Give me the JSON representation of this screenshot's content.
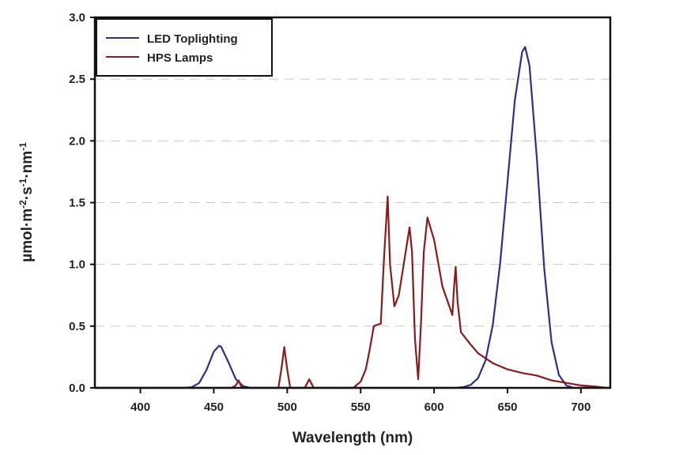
{
  "chart_data": {
    "type": "line",
    "title": "",
    "xlabel": "Wavelength (nm)",
    "ylabel": {
      "base": "µmol·m",
      "sup1": "-2",
      "mid1": "·s",
      "sup2": "-1",
      "mid2": "·nm",
      "sup3": "-1"
    },
    "xlim": [
      369,
      720
    ],
    "ylim": [
      0,
      3.0
    ],
    "xticks": [
      400,
      450,
      500,
      550,
      600,
      650,
      700
    ],
    "yticks": [
      "0.0",
      "0.5",
      "1.0",
      "1.5",
      "2.0",
      "2.5",
      "3.0"
    ],
    "grid": "horizontal dashed",
    "legend_position": "top-left",
    "series": [
      {
        "name": "LED Toplighting",
        "color": "#2e2f8a",
        "points": [
          [
            369,
            0
          ],
          [
            430,
            0
          ],
          [
            435,
            0.006
          ],
          [
            440,
            0.039
          ],
          [
            445,
            0.145
          ],
          [
            450,
            0.294
          ],
          [
            453.5,
            0.34
          ],
          [
            455,
            0.333
          ],
          [
            460,
            0.207
          ],
          [
            465,
            0.071
          ],
          [
            470,
            0.014
          ],
          [
            475,
            0
          ],
          [
            612,
            0
          ],
          [
            615,
            0.001
          ],
          [
            620,
            0.006
          ],
          [
            625,
            0.024
          ],
          [
            630,
            0.079
          ],
          [
            635,
            0.22
          ],
          [
            640,
            0.51
          ],
          [
            645,
            1.01
          ],
          [
            650,
            1.67
          ],
          [
            655,
            2.33
          ],
          [
            660,
            2.72
          ],
          [
            662,
            2.76
          ],
          [
            665,
            2.61
          ],
          [
            670,
            1.86
          ],
          [
            675,
            0.97
          ],
          [
            680,
            0.37
          ],
          [
            685,
            0.105
          ],
          [
            690,
            0.02
          ],
          [
            695,
            0
          ],
          [
            720,
            0
          ]
        ]
      },
      {
        "name": "HPS Lamps",
        "color": "#8b1a1a",
        "points": [
          [
            369,
            0
          ],
          [
            462,
            0
          ],
          [
            465,
            0.02
          ],
          [
            467,
            0.06
          ],
          [
            469,
            0
          ],
          [
            494,
            0
          ],
          [
            496,
            0.15
          ],
          [
            498,
            0.33
          ],
          [
            500,
            0.15
          ],
          [
            502,
            0
          ],
          [
            512,
            0
          ],
          [
            515,
            0.07
          ],
          [
            518,
            0
          ],
          [
            545,
            0
          ],
          [
            550,
            0.05
          ],
          [
            553.5,
            0.15
          ],
          [
            556,
            0.3
          ],
          [
            559,
            0.5
          ],
          [
            563.7,
            0.52
          ],
          [
            565.8,
            1.03
          ],
          [
            568.4,
            1.55
          ],
          [
            570,
            1.0
          ],
          [
            573,
            0.66
          ],
          [
            576,
            0.75
          ],
          [
            580,
            1.05
          ],
          [
            583.3,
            1.3
          ],
          [
            585,
            1.1
          ],
          [
            587,
            0.4
          ],
          [
            589.2,
            0.07
          ],
          [
            591,
            0.5
          ],
          [
            593,
            1.1
          ],
          [
            595.5,
            1.38
          ],
          [
            600,
            1.2
          ],
          [
            605.7,
            0.82
          ],
          [
            612.5,
            0.59
          ],
          [
            613.5,
            0.8
          ],
          [
            614.7,
            0.98
          ],
          [
            616,
            0.7
          ],
          [
            618.3,
            0.45
          ],
          [
            625,
            0.35
          ],
          [
            630,
            0.28
          ],
          [
            640,
            0.2
          ],
          [
            650,
            0.15
          ],
          [
            660,
            0.12
          ],
          [
            670,
            0.1
          ],
          [
            680,
            0.06
          ],
          [
            690,
            0.04
          ],
          [
            700,
            0.02
          ],
          [
            710,
            0.01
          ],
          [
            718,
            0
          ]
        ]
      }
    ]
  }
}
